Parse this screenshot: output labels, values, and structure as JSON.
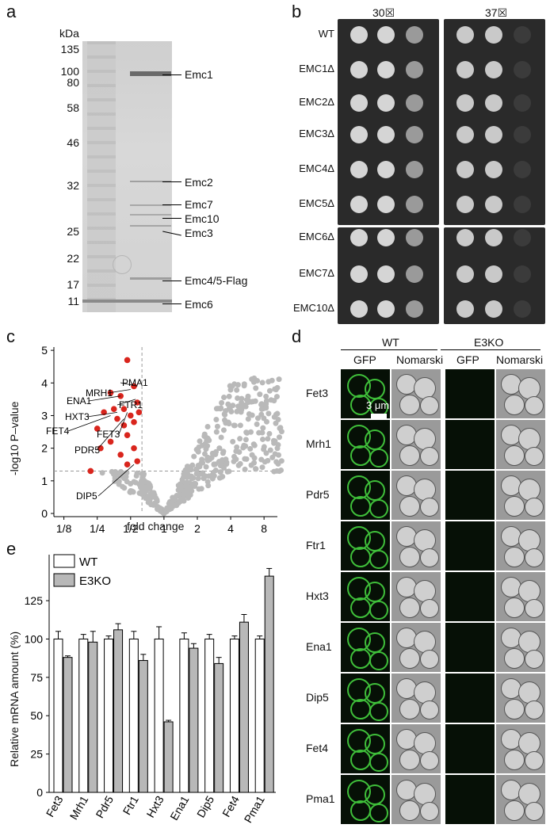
{
  "panels": {
    "a": "a",
    "b": "b",
    "c": "c",
    "d": "d",
    "e": "e"
  },
  "gel": {
    "unit": "kDa",
    "markers": [
      "135",
      "100",
      "80",
      "58",
      "46",
      "32",
      "25",
      "22",
      "17",
      "11"
    ],
    "bands": [
      "Emc1",
      "Emc2",
      "Emc7",
      "Emc10",
      "Emc3",
      "Emc4/5-Flag",
      "Emc6"
    ]
  },
  "spot": {
    "temps": [
      "30☒",
      "37☒"
    ],
    "strains": [
      "WT",
      "EMC1Δ",
      "EMC2Δ",
      "EMC3Δ",
      "EMC4Δ",
      "EMC5Δ",
      "EMC6Δ",
      "EMC7Δ",
      "EMC10Δ"
    ]
  },
  "volcano": {
    "ylabel": "-log10 P–value",
    "xlabel": "fold change",
    "xticks": [
      "1/8",
      "1/4",
      "1/2",
      "1",
      "2",
      "4",
      "8"
    ],
    "yticks": [
      "0",
      "1",
      "2",
      "3",
      "4",
      "5"
    ],
    "labels": [
      "PMA1",
      "MRH1",
      "FTR1",
      "ENA1",
      "HXT3",
      "FET3",
      "FET4",
      "PDR5",
      "DIP5"
    ],
    "colors": {
      "hit": "#d9251d",
      "other": "#b9b9b9"
    }
  },
  "micro": {
    "groups": [
      "WT",
      "E3KO"
    ],
    "cols": [
      "GFP",
      "Nomarski",
      "GFP",
      "Nomarski"
    ],
    "scale": "3 μm",
    "rows": [
      "Fet3",
      "Mrh1",
      "Pdr5",
      "Ftr1",
      "Hxt3",
      "Ena1",
      "Dip5",
      "Fet4",
      "Pma1"
    ]
  },
  "chart_data": {
    "type": "bar",
    "ylabel": "Relative mRNA amount (%)",
    "categories": [
      "Fet3",
      "Mrh1",
      "Pdr5",
      "Ftr1",
      "Hxt3",
      "Ena1",
      "Dip5",
      "Fet4",
      "Pma1"
    ],
    "series": [
      {
        "name": "WT",
        "values": [
          100,
          100,
          100,
          100,
          100,
          100,
          100,
          100,
          100
        ],
        "err": [
          5,
          3,
          2,
          5,
          8,
          4,
          3,
          2,
          2
        ]
      },
      {
        "name": "E3KO",
        "values": [
          88,
          98,
          106,
          86,
          46,
          94,
          84,
          111,
          141
        ],
        "err": [
          1,
          7,
          4,
          4,
          1,
          3,
          4,
          5,
          5
        ]
      }
    ],
    "yticks": [
      0,
      25,
      50,
      75,
      100,
      125
    ],
    "ylim": [
      0,
      155
    ]
  }
}
